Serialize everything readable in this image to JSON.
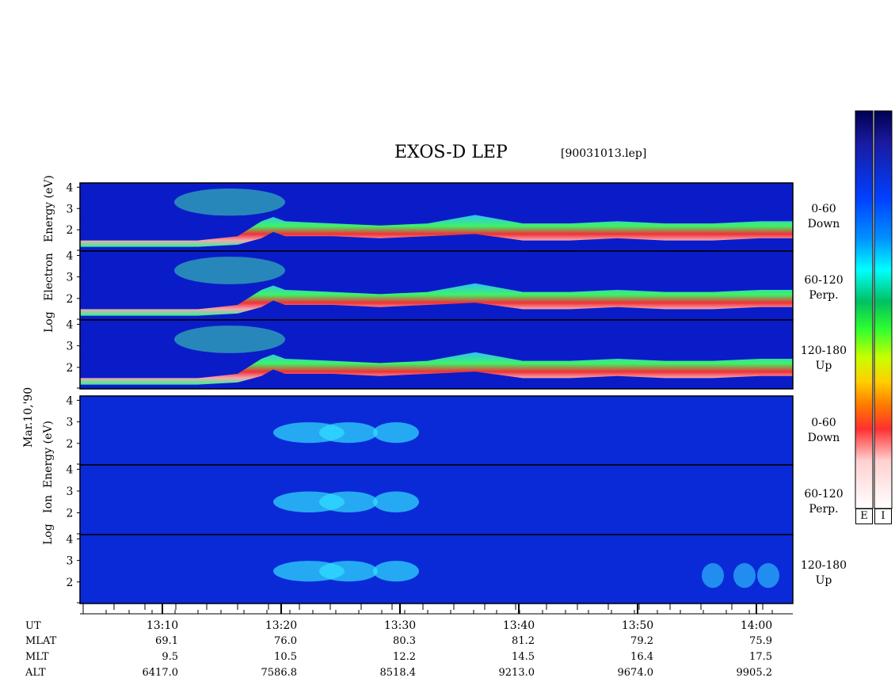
{
  "title": "EXOS-D LEP",
  "file": "[90031013.lep]",
  "date": "Mar.10,'90",
  "colors": {
    "scale": [
      "#ffffff",
      "#ffd0d0",
      "#ff3030",
      "#ff7a00",
      "#ffd000",
      "#c8ff00",
      "#30ff30",
      "#00c060",
      "#00ffff",
      "#0090ff",
      "#0040ff",
      "#1a1aa0",
      "#000050"
    ]
  },
  "chart_data": {
    "type": "heatmap",
    "groups": [
      {
        "name": "Electron",
        "ylabel": [
          "Log",
          "Electron",
          "Energy",
          "(eV)"
        ],
        "panels": [
          {
            "pitch": "0-60",
            "dir": "Down"
          },
          {
            "pitch": "60-120",
            "dir": "Perp."
          },
          {
            "pitch": "120-180",
            "dir": "Up"
          }
        ]
      },
      {
        "name": "Ion",
        "ylabel": [
          "Log",
          "Ion",
          "Energy",
          "(eV)"
        ],
        "panels": [
          {
            "pitch": "0-60",
            "dir": "Down"
          },
          {
            "pitch": "60-120",
            "dir": "Perp."
          },
          {
            "pitch": "120-180",
            "dir": "Up"
          }
        ]
      }
    ],
    "y_ticks": [
      "2",
      "3",
      "4"
    ],
    "ylim": [
      1,
      4.2
    ],
    "x_ticks": [
      "13:10",
      "13:20",
      "13:30",
      "13:40",
      "13:50",
      "14:00"
    ],
    "colorbars": [
      "E",
      "I"
    ],
    "ephemeris": {
      "rows": [
        {
          "label": "UT",
          "values": [
            "",
            "",
            "",
            "",
            "",
            ""
          ]
        },
        {
          "label": "MLAT",
          "values": [
            "69.1",
            "76.0",
            "80.3",
            "81.2",
            "79.2",
            "75.9"
          ]
        },
        {
          "label": "MLT",
          "values": [
            "9.5",
            "10.5",
            "12.2",
            "14.5",
            "16.4",
            "17.5"
          ]
        },
        {
          "label": "ALT",
          "values": [
            "6417.0",
            "7586.8",
            "8518.4",
            "9213.0",
            "9674.0",
            "9905.2"
          ]
        }
      ]
    }
  }
}
